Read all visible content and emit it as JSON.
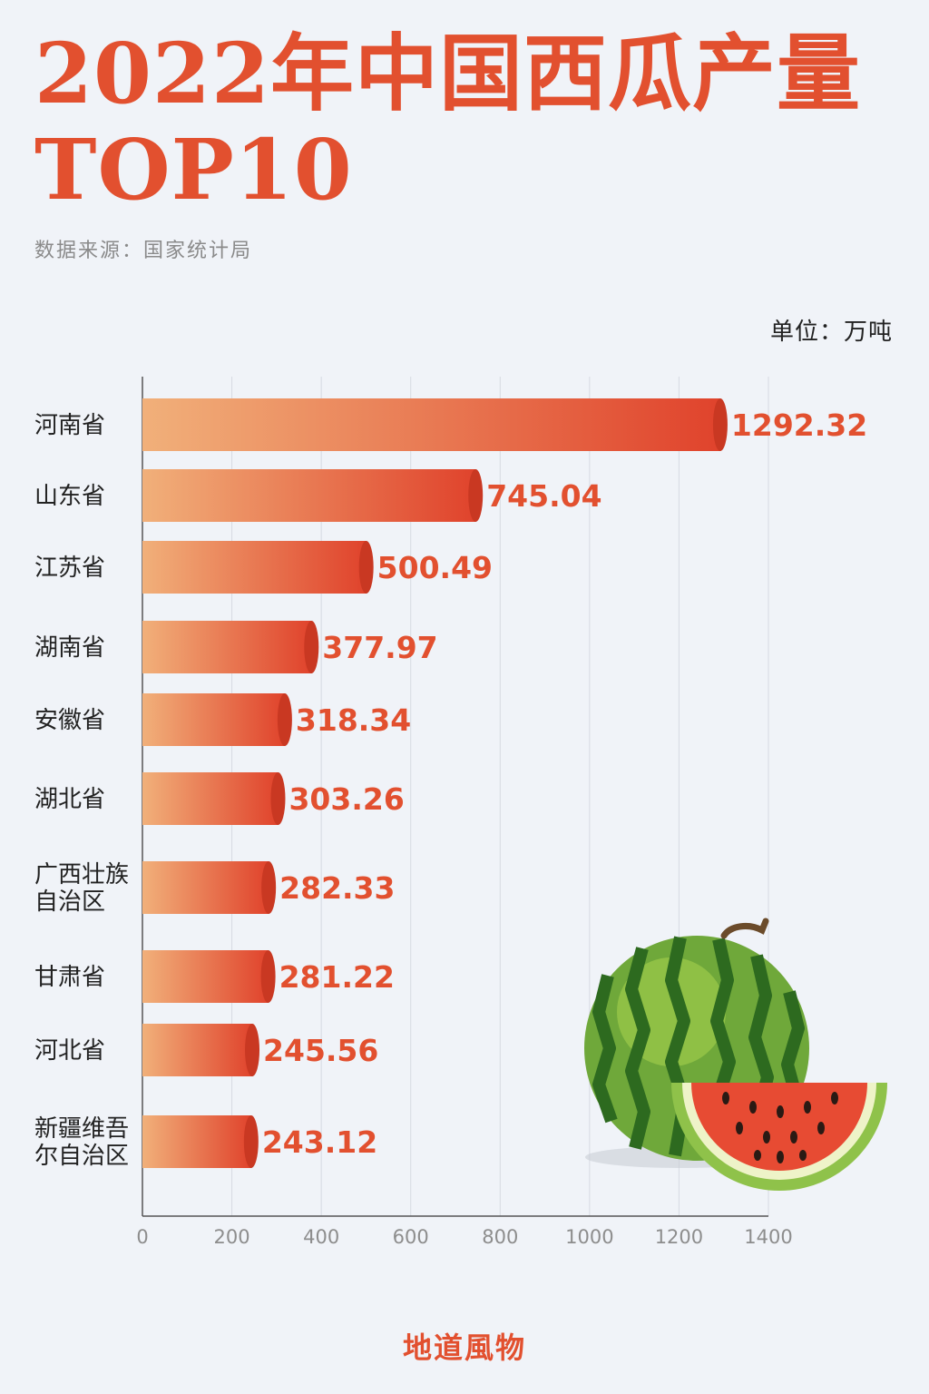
{
  "title_line1": "2022年中国西瓜产量",
  "title_line2": "TOP10",
  "source": "数据来源：国家统计局",
  "unit": "单位：万吨",
  "brand": "地道風物",
  "colors": {
    "accent": "#e2502f",
    "bar_start": "#f1b07a",
    "bar_end": "#e0432c",
    "background": "#f0f3f8"
  },
  "chart_data": {
    "type": "bar",
    "orientation": "horizontal",
    "categories": [
      "河南省",
      "山东省",
      "江苏省",
      "湖南省",
      "安徽省",
      "湖北省",
      "广西壮族自治区",
      "甘肃省",
      "河北省",
      "新疆维吾尔自治区"
    ],
    "category_label_lines": [
      [
        "河南省"
      ],
      [
        "山东省"
      ],
      [
        "江苏省"
      ],
      [
        "湖南省"
      ],
      [
        "安徽省"
      ],
      [
        "湖北省"
      ],
      [
        "广西壮族",
        "自治区"
      ],
      [
        "甘肃省"
      ],
      [
        "河北省"
      ],
      [
        "新疆维吾",
        "尔自治区"
      ]
    ],
    "values": [
      1292.32,
      745.04,
      500.49,
      377.97,
      318.34,
      303.26,
      282.33,
      281.22,
      245.56,
      243.12
    ],
    "value_labels": [
      "1292.32",
      "745.04",
      "500.49",
      "377.97",
      "318.34",
      "303.26",
      "282.33",
      "281.22",
      "245.56",
      "243.12"
    ],
    "xlim": [
      0,
      1400
    ],
    "xticks": [
      "0",
      "200",
      "400",
      "600",
      "800",
      "1000",
      "1200",
      "1400"
    ],
    "grid": true
  }
}
